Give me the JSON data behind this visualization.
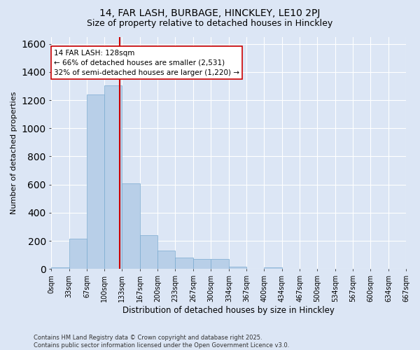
{
  "title_line1": "14, FAR LASH, BURBAGE, HINCKLEY, LE10 2PJ",
  "title_line2": "Size of property relative to detached houses in Hinckley",
  "xlabel": "Distribution of detached houses by size in Hinckley",
  "ylabel": "Number of detached properties",
  "bin_edges": [
    0,
    33,
    67,
    100,
    133,
    167,
    200,
    233,
    267,
    300,
    334,
    367,
    400,
    434,
    467,
    500,
    534,
    567,
    600,
    634,
    667
  ],
  "bar_values": [
    10,
    215,
    1240,
    1305,
    610,
    240,
    130,
    80,
    70,
    70,
    15,
    0,
    10,
    0,
    0,
    0,
    0,
    0,
    0,
    0
  ],
  "bar_color": "#b8cfe8",
  "bar_edge_color": "#7aaad0",
  "background_color": "#dce6f5",
  "grid_color": "#ffffff",
  "vline_x": 128,
  "vline_color": "#cc0000",
  "annotation_text": "14 FAR LASH: 128sqm\n← 66% of detached houses are smaller (2,531)\n32% of semi-detached houses are larger (1,220) →",
  "annotation_box_color": "#ffffff",
  "annotation_box_edge": "#cc0000",
  "ylim": [
    0,
    1650
  ],
  "yticks": [
    0,
    200,
    400,
    600,
    800,
    1000,
    1200,
    1400,
    1600
  ],
  "tick_labels": [
    "0sqm",
    "33sqm",
    "67sqm",
    "100sqm",
    "133sqm",
    "167sqm",
    "200sqm",
    "233sqm",
    "267sqm",
    "300sqm",
    "334sqm",
    "367sqm",
    "400sqm",
    "434sqm",
    "467sqm",
    "500sqm",
    "534sqm",
    "567sqm",
    "600sqm",
    "634sqm",
    "667sqm"
  ],
  "footer_line1": "Contains HM Land Registry data © Crown copyright and database right 2025.",
  "footer_line2": "Contains public sector information licensed under the Open Government Licence v3.0."
}
